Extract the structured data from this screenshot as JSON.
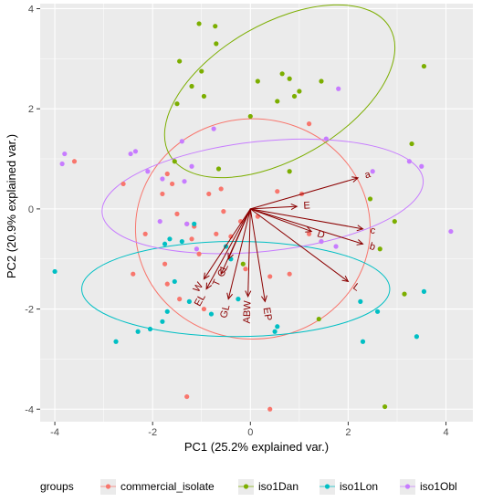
{
  "chart_data": {
    "type": "scatter",
    "subtype": "pca-biplot",
    "xlabel": "PC1 (25.2% explained var.)",
    "ylabel": "PC2 (20.9% explained var.)",
    "xlim": [
      -4.3,
      4.55
    ],
    "ylim": [
      -4.25,
      4.1
    ],
    "xticks": [
      -4,
      -2,
      0,
      2,
      4
    ],
    "yticks": [
      -4,
      -2,
      0,
      2,
      4
    ],
    "background": "#EBEBEB",
    "gridlines": true,
    "legend": {
      "position": "bottom",
      "title": "groups",
      "entries": [
        "commercial_isolate",
        "iso1Dan",
        "iso1Lon",
        "iso1Obl"
      ]
    },
    "series": [
      {
        "name": "commercial_isolate",
        "color": "#F8766D",
        "points": [
          [
            -3.6,
            0.95
          ],
          [
            -2.6,
            0.5
          ],
          [
            -2.4,
            -1.3
          ],
          [
            -2.15,
            -0.5
          ],
          [
            -1.8,
            0.3
          ],
          [
            -1.7,
            0.7
          ],
          [
            -1.75,
            -1.1
          ],
          [
            -1.6,
            0.5
          ],
          [
            -1.5,
            -0.1
          ],
          [
            -1.45,
            -1.8
          ],
          [
            -1.3,
            -0.3
          ],
          [
            -1.2,
            -0.6
          ],
          [
            -1.05,
            -0.9
          ],
          [
            -0.95,
            -2.0
          ],
          [
            -0.85,
            0.3
          ],
          [
            -0.7,
            -0.5
          ],
          [
            -0.6,
            0.4
          ],
          [
            -0.55,
            -0.05
          ],
          [
            -0.4,
            -0.55
          ],
          [
            -0.2,
            -0.25
          ],
          [
            -0.1,
            -1.2
          ],
          [
            0.15,
            -0.15
          ],
          [
            0.4,
            -1.35
          ],
          [
            0.55,
            0.35
          ],
          [
            0.8,
            -1.3
          ],
          [
            1.05,
            0.3
          ],
          [
            1.2,
            -0.5
          ],
          [
            1.45,
            -0.65
          ],
          [
            1.2,
            1.7
          ],
          [
            0.4,
            -4.0
          ],
          [
            -1.3,
            -3.75
          ],
          [
            -1.7,
            -1.5
          ],
          [
            -1.15,
            -0.35
          ]
        ]
      },
      {
        "name": "iso1Dan",
        "color": "#7CAE00",
        "points": [
          [
            -1.05,
            3.7
          ],
          [
            -0.72,
            3.65
          ],
          [
            -0.7,
            3.3
          ],
          [
            -1.45,
            2.95
          ],
          [
            -1.5,
            2.1
          ],
          [
            -1.2,
            2.45
          ],
          [
            -1.0,
            2.75
          ],
          [
            -0.95,
            2.25
          ],
          [
            0.15,
            2.55
          ],
          [
            0.55,
            2.15
          ],
          [
            0.0,
            1.85
          ],
          [
            0.65,
            2.7
          ],
          [
            0.8,
            2.6
          ],
          [
            0.9,
            2.25
          ],
          [
            1.0,
            2.35
          ],
          [
            1.45,
            2.55
          ],
          [
            0.8,
            0.75
          ],
          [
            -1.55,
            0.95
          ],
          [
            -0.65,
            0.8
          ],
          [
            2.45,
            0.2
          ],
          [
            2.95,
            -0.25
          ],
          [
            3.3,
            1.3
          ],
          [
            3.55,
            2.85
          ],
          [
            2.65,
            -0.8
          ],
          [
            3.15,
            -1.7
          ],
          [
            2.75,
            -3.95
          ],
          [
            1.4,
            -2.2
          ],
          [
            -0.15,
            -1.1
          ]
        ]
      },
      {
        "name": "iso1Lon",
        "color": "#00BFC4",
        "points": [
          [
            -4.0,
            -1.25
          ],
          [
            -2.75,
            -2.65
          ],
          [
            -2.3,
            -2.45
          ],
          [
            -2.05,
            -2.4
          ],
          [
            -1.8,
            -2.25
          ],
          [
            -1.7,
            -2.05
          ],
          [
            -1.75,
            -0.7
          ],
          [
            -1.65,
            -0.6
          ],
          [
            -1.4,
            -0.65
          ],
          [
            -1.55,
            -1.45
          ],
          [
            -1.25,
            -1.85
          ],
          [
            -0.8,
            -2.1
          ],
          [
            -0.5,
            -0.75
          ],
          [
            -0.4,
            -1.0
          ],
          [
            -0.25,
            -1.8
          ],
          [
            0.5,
            -2.45
          ],
          [
            0.55,
            -2.35
          ],
          [
            2.25,
            -1.85
          ],
          [
            2.3,
            -2.65
          ],
          [
            2.6,
            -2.05
          ],
          [
            3.4,
            -2.55
          ],
          [
            3.55,
            -1.65
          ],
          [
            -1.15,
            -0.3
          ]
        ]
      },
      {
        "name": "iso1Obl",
        "color": "#C77CFF",
        "points": [
          [
            -3.8,
            1.1
          ],
          [
            -3.85,
            0.9
          ],
          [
            -2.35,
            1.15
          ],
          [
            -2.45,
            1.1
          ],
          [
            -1.8,
            0.6
          ],
          [
            -1.4,
            1.35
          ],
          [
            -1.3,
            -0.3
          ],
          [
            -0.75,
            1.6
          ],
          [
            -1.35,
            0.55
          ],
          [
            -1.2,
            0.85
          ],
          [
            -2.1,
            0.75
          ],
          [
            -1.85,
            -0.25
          ],
          [
            1.55,
            1.4
          ],
          [
            1.8,
            2.4
          ],
          [
            1.45,
            -0.65
          ],
          [
            1.75,
            -0.75
          ],
          [
            2.5,
            0.75
          ],
          [
            3.25,
            0.95
          ],
          [
            3.5,
            0.85
          ],
          [
            4.1,
            -0.45
          ],
          [
            -1.1,
            -0.8
          ]
        ]
      }
    ],
    "loadings": [
      {
        "label": "a",
        "x": 2.2,
        "y": 0.62
      },
      {
        "label": "E",
        "x": 0.95,
        "y": 0.05
      },
      {
        "label": "c",
        "x": 2.3,
        "y": -0.4
      },
      {
        "label": "D",
        "x": 1.25,
        "y": -0.45
      },
      {
        "label": "b",
        "x": 2.3,
        "y": -0.7
      },
      {
        "label": "L",
        "x": 2.0,
        "y": -1.45
      },
      {
        "label": "EP",
        "x": 0.3,
        "y": -1.85
      },
      {
        "label": "ABW",
        "x": -0.05,
        "y": -1.75
      },
      {
        "label": "GL",
        "x": -0.45,
        "y": -1.8
      },
      {
        "label": "EL",
        "x": -0.9,
        "y": -1.6
      },
      {
        "label": "W",
        "x": -0.95,
        "y": -1.4
      },
      {
        "label": "T",
        "x": -0.6,
        "y": -1.3
      },
      {
        "label": "CL",
        "x": -0.45,
        "y": -1.0
      }
    ],
    "ellipses": [
      {
        "group": "commercial_isolate",
        "cx": 0.05,
        "cy": -0.4,
        "rx": 2.4,
        "ry": 2.2,
        "angle": 0
      },
      {
        "group": "iso1Dan",
        "cx": 0.6,
        "cy": 2.35,
        "rx": 2.6,
        "ry": 1.35,
        "angle": -30
      },
      {
        "group": "iso1Lon",
        "cx": -0.3,
        "cy": -1.6,
        "rx": 3.15,
        "ry": 0.95,
        "angle": 0
      },
      {
        "group": "iso1Obl",
        "cx": 0.25,
        "cy": 0.25,
        "rx": 3.3,
        "ry": 1.1,
        "angle": -6
      }
    ],
    "loading_color": "#8B0000"
  }
}
